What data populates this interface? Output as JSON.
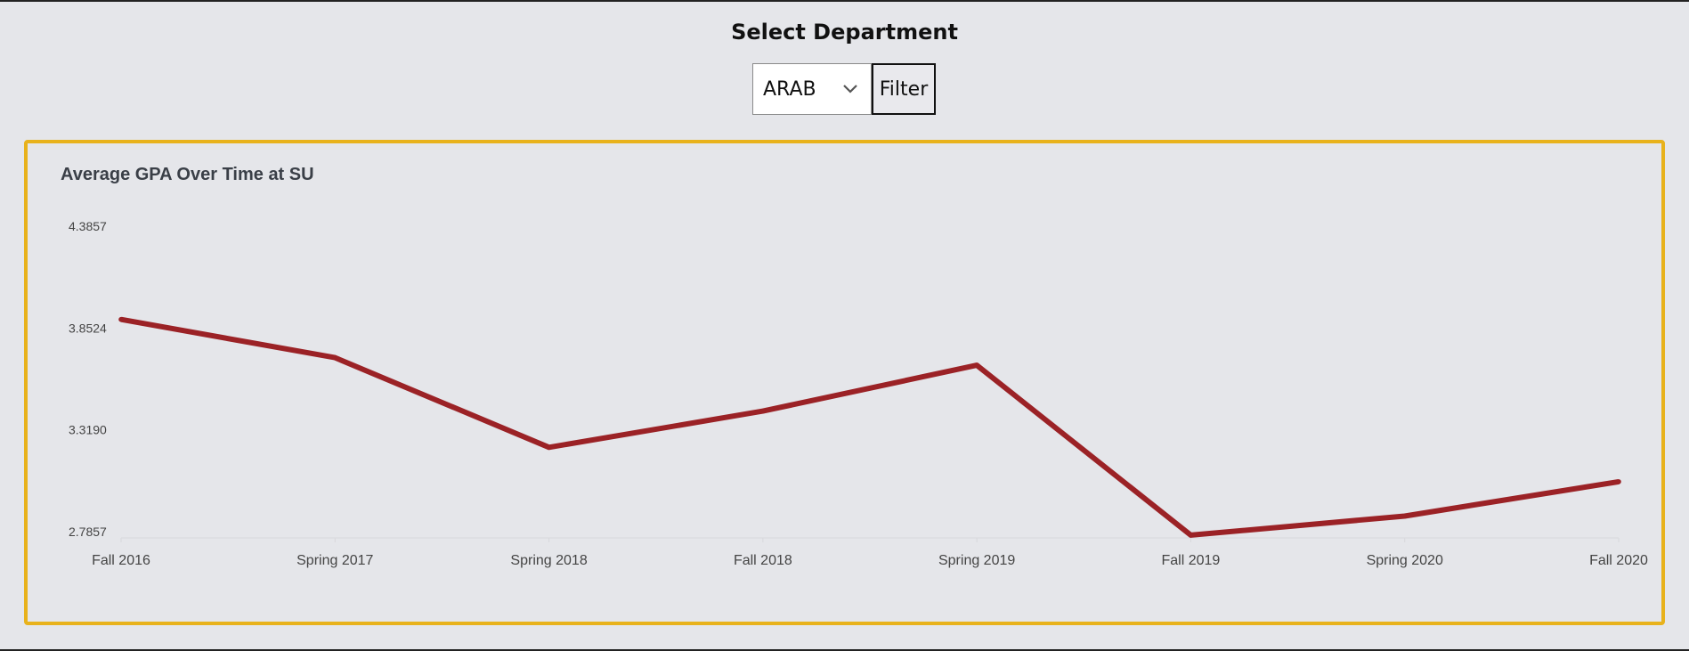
{
  "header": {
    "title": "Select Department"
  },
  "controls": {
    "department_selected": "ARAB",
    "filter_label": "Filter"
  },
  "colors": {
    "accent_border": "#e8b21c",
    "series_line": "#9b2226"
  },
  "chart_data": {
    "type": "line",
    "title": "Average GPA Over Time at SU",
    "xlabel": "",
    "ylabel": "",
    "categories": [
      "Fall 2016",
      "Spring 2017",
      "Spring 2018",
      "Fall 2018",
      "Spring 2019",
      "Fall 2019",
      "Spring 2020",
      "Fall 2020"
    ],
    "series": [
      {
        "values": [
          3.93,
          3.73,
          3.26,
          3.45,
          3.69,
          2.8,
          2.9,
          3.08
        ]
      }
    ],
    "y_ticks": [
      "4.3857",
      "3.8524",
      "3.3190",
      "2.7857"
    ],
    "ylim": [
      2.7857,
      4.3857
    ],
    "grid": false,
    "legend": "none"
  }
}
